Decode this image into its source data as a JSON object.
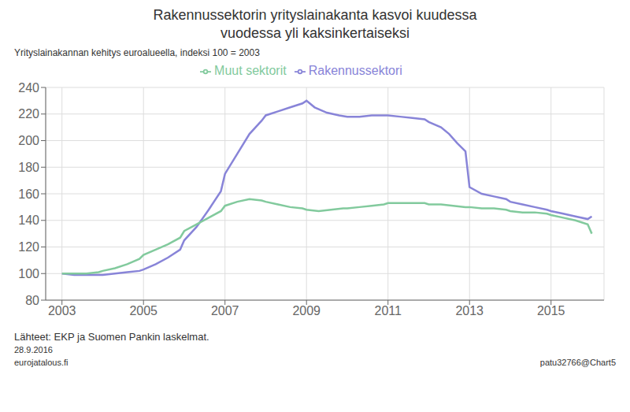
{
  "chart_data": {
    "type": "line",
    "title": "Rakennussektorin yrityslainakanta kasvoi kuudessa\nvuodessa yli kaksinkertaiseksi",
    "ylabel": "Yrityslainakannan kehitys euroalueella, indeksi 100 = 2003",
    "annotations": [
      "Lähteet: EKP ja Suomen Pankin laskelmat.",
      "28.9.2016",
      "eurojatalous.fi",
      "patu32766@Chart5"
    ],
    "xlim": [
      2002.6,
      2016.3
    ],
    "xticks": [
      2003,
      2005,
      2007,
      2009,
      2011,
      2013,
      2015
    ],
    "ylim": [
      80,
      240
    ],
    "yticks": [
      80,
      100,
      120,
      140,
      160,
      180,
      200,
      220,
      240
    ],
    "grid": true,
    "legend": "top",
    "series": [
      {
        "name": "Rakennussektori",
        "color": "#8884d8",
        "x": [
          2003.0,
          2003.3,
          2003.6,
          2003.9,
          2004.0,
          2004.3,
          2004.6,
          2004.9,
          2005.0,
          2005.3,
          2005.6,
          2005.9,
          2006.0,
          2006.3,
          2006.6,
          2006.9,
          2007.0,
          2007.3,
          2007.6,
          2007.9,
          2008.0,
          2008.3,
          2008.6,
          2008.9,
          2009.0,
          2009.2,
          2009.5,
          2009.8,
          2010.0,
          2010.3,
          2010.6,
          2010.9,
          2011.0,
          2011.3,
          2011.6,
          2011.9,
          2012.0,
          2012.3,
          2012.5,
          2012.7,
          2012.9,
          2013.0,
          2013.3,
          2013.6,
          2013.9,
          2014.0,
          2014.3,
          2014.6,
          2014.9,
          2015.0,
          2015.3,
          2015.6,
          2015.9,
          2016.0
        ],
        "values": [
          100,
          99,
          99,
          99,
          99,
          100,
          101,
          102,
          103,
          107,
          112,
          118,
          125,
          135,
          148,
          162,
          175,
          190,
          205,
          215,
          219,
          222,
          225,
          228,
          230,
          225,
          221,
          219,
          218,
          218,
          219,
          219,
          219,
          218,
          217,
          216,
          214,
          210,
          205,
          198,
          192,
          165,
          160,
          158,
          156,
          154,
          152,
          150,
          148,
          147,
          145,
          143,
          141,
          143
        ]
      },
      {
        "name": "Muut sektorit",
        "color": "#82ca9d",
        "x": [
          2003.0,
          2003.3,
          2003.6,
          2003.9,
          2004.0,
          2004.3,
          2004.6,
          2004.9,
          2005.0,
          2005.3,
          2005.6,
          2005.9,
          2006.0,
          2006.3,
          2006.6,
          2006.9,
          2007.0,
          2007.3,
          2007.6,
          2007.9,
          2008.0,
          2008.3,
          2008.6,
          2008.9,
          2009.0,
          2009.3,
          2009.6,
          2009.9,
          2010.0,
          2010.3,
          2010.6,
          2010.9,
          2011.0,
          2011.3,
          2011.6,
          2011.9,
          2012.0,
          2012.3,
          2012.6,
          2012.9,
          2013.0,
          2013.3,
          2013.6,
          2013.9,
          2014.0,
          2014.3,
          2014.6,
          2014.9,
          2015.0,
          2015.3,
          2015.6,
          2015.9,
          2016.0
        ],
        "values": [
          100,
          100,
          100,
          101,
          102,
          104,
          107,
          111,
          114,
          118,
          122,
          127,
          132,
          137,
          142,
          147,
          151,
          154,
          156,
          155,
          154,
          152,
          150,
          149,
          148,
          147,
          148,
          149,
          149,
          150,
          151,
          152,
          153,
          153,
          153,
          153,
          152,
          152,
          151,
          150,
          150,
          149,
          149,
          148,
          147,
          146,
          146,
          145,
          144,
          142,
          140,
          137,
          130
        ]
      }
    ]
  }
}
